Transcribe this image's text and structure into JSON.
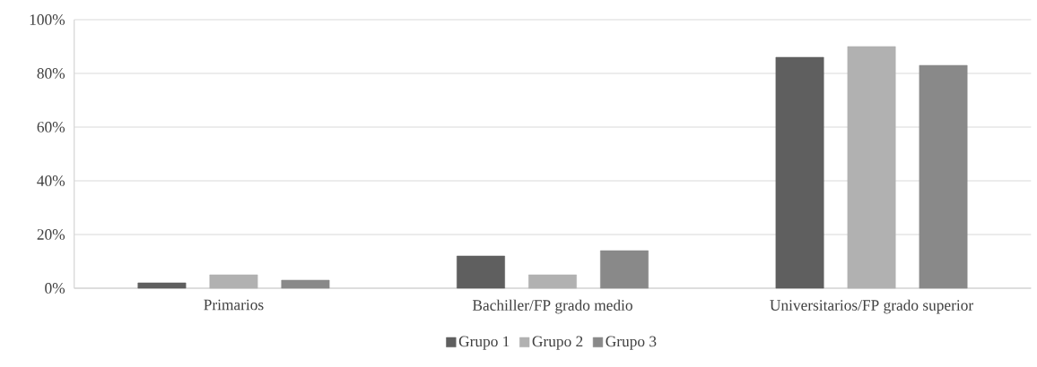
{
  "chart_data": {
    "type": "bar",
    "categories": [
      "Primarios",
      "Bachiller/FP grado medio",
      "Universitarios/FP grado superior"
    ],
    "series": [
      {
        "name": "Grupo 1",
        "color": "#5f5f5f",
        "values": [
          2,
          12,
          86
        ]
      },
      {
        "name": "Grupo 2",
        "color": "#b1b1b1",
        "values": [
          5,
          5,
          90
        ]
      },
      {
        "name": "Grupo 3",
        "color": "#898989",
        "values": [
          3,
          14,
          83
        ]
      }
    ],
    "ylim": [
      0,
      100
    ],
    "yticks": [
      {
        "value": 0,
        "label": "0%"
      },
      {
        "value": 20,
        "label": "20%"
      },
      {
        "value": 40,
        "label": "40%"
      },
      {
        "value": 60,
        "label": "60%"
      },
      {
        "value": 80,
        "label": "80%"
      },
      {
        "value": 100,
        "label": "100%"
      }
    ],
    "grid": "y",
    "legend": "bottom"
  }
}
